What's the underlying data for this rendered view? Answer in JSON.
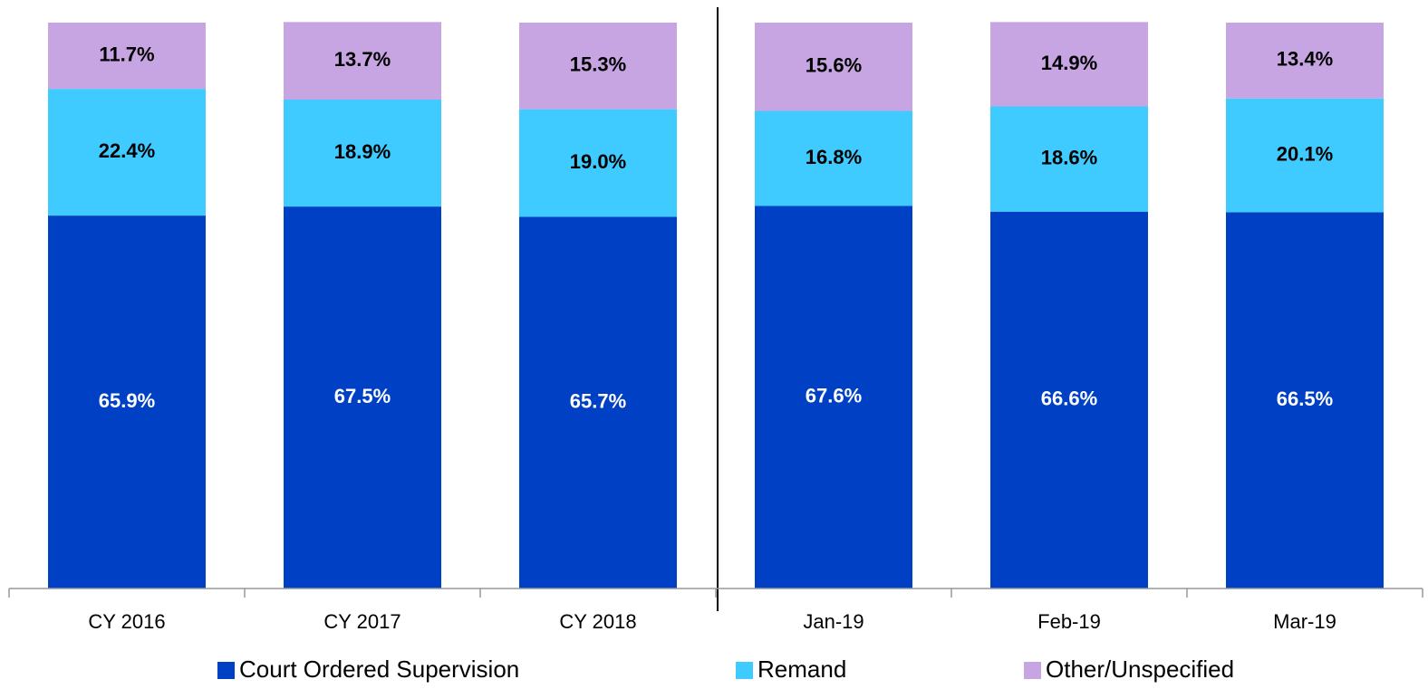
{
  "chart_data": {
    "type": "stacked_bar",
    "categories": [
      "CY 2016",
      "CY 2017",
      "CY 2018",
      "Jan-19",
      "Feb-19",
      "Mar-19"
    ],
    "series": [
      {
        "name": "Court Ordered Supervision",
        "color": "#0040c4",
        "label_color": "#ffffff",
        "values": [
          65.9,
          67.5,
          65.7,
          67.6,
          66.6,
          66.5
        ],
        "value_labels": [
          "65.9%",
          "67.5%",
          "65.7%",
          "67.6%",
          "66.6%",
          "66.5%"
        ]
      },
      {
        "name": "Remand",
        "color": "#3fcbff",
        "label_color": "#000000",
        "values": [
          22.4,
          18.9,
          19.0,
          16.8,
          18.6,
          20.1
        ],
        "value_labels": [
          "22.4%",
          "18.9%",
          "19.0%",
          "16.8%",
          "18.6%",
          "20.1%"
        ]
      },
      {
        "name": "Other/Unspecified",
        "color": "#c7a5e3",
        "label_color": "#000000",
        "values": [
          11.7,
          13.7,
          15.3,
          15.6,
          14.9,
          13.4
        ],
        "value_labels": [
          "11.7%",
          "13.7%",
          "15.3%",
          "15.6%",
          "14.9%",
          "13.4%"
        ]
      }
    ],
    "ylim": [
      0,
      100
    ],
    "legend": "bottom"
  }
}
